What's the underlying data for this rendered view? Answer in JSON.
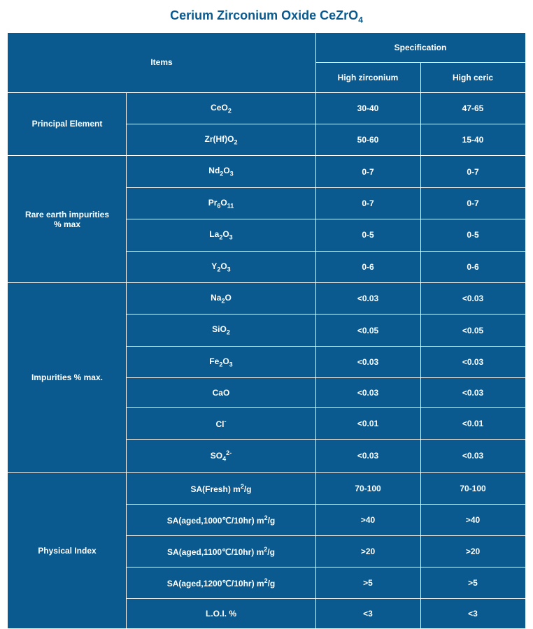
{
  "title_pre": "Cerium Zirconium Oxide  CeZrO",
  "title_sub": "4",
  "colors": {
    "bg": "#0a5a8f",
    "border": "#ffffff",
    "text": "#ffffff",
    "title_color": "#0a5a8f"
  },
  "header": {
    "items": "Items",
    "spec": "Specification",
    "hz": "High zirconium",
    "hc": "High ceric"
  },
  "sections": [
    {
      "name": "Principal Element",
      "rows": [
        {
          "item_html": "CeO<sub>2</sub>",
          "hz": "30-40",
          "hc": "47-65"
        },
        {
          "item_html": "Zr(Hf)O<sub>2</sub>",
          "hz": "50-60",
          "hc": "15-40"
        }
      ]
    },
    {
      "name": "Rare earth impurities\n% max",
      "rows": [
        {
          "item_html": "Nd<sub>2</sub>O<sub>3</sub>",
          "hz": "0-7",
          "hc": "0-7"
        },
        {
          "item_html": "Pr<sub>6</sub>O<sub>11</sub>",
          "hz": "0-7",
          "hc": "0-7"
        },
        {
          "item_html": "La<sub>2</sub>O<sub>3</sub>",
          "hz": "0-5",
          "hc": "0-5"
        },
        {
          "item_html": "Y<sub>2</sub>O<sub>3</sub>",
          "hz": "0-6",
          "hc": "0-6"
        }
      ]
    },
    {
      "name": "Impurities % max.",
      "rows": [
        {
          "item_html": "Na<sub>2</sub>O",
          "hz": "<0.03",
          "hc": "<0.03"
        },
        {
          "item_html": "SiO<sub>2</sub>",
          "hz": "<0.05",
          "hc": "<0.05"
        },
        {
          "item_html": "Fe<sub>2</sub>O<sub>3</sub>",
          "hz": "<0.03",
          "hc": "<0.03"
        },
        {
          "item_html": "CaO",
          "hz": "<0.03",
          "hc": "<0.03"
        },
        {
          "item_html": "Cl<sup>-</sup>",
          "hz": "<0.01",
          "hc": "<0.01"
        },
        {
          "item_html": "SO<sub>4</sub><sup>2-</sup>",
          "hz": "<0.03",
          "hc": "<0.03"
        }
      ]
    },
    {
      "name": "Physical Index",
      "rows": [
        {
          "item_html": "SA(Fresh) m<sup>2</sup>/g",
          "hz": "70-100",
          "hc": "70-100"
        },
        {
          "item_html": "SA(aged,1000℃/10hr) m<sup>2</sup>/g",
          "hz": ">40",
          "hc": ">40"
        },
        {
          "item_html": "SA(aged,1100℃/10hr) m<sup>2</sup>/g",
          "hz": ">20",
          "hc": ">20"
        },
        {
          "item_html": "SA(aged,1200℃/10hr) m<sup>2</sup>/g",
          "hz": ">5",
          "hc": ">5"
        },
        {
          "item_html": "L.O.I. %",
          "hz": "<3",
          "hc": "<3"
        }
      ]
    }
  ]
}
